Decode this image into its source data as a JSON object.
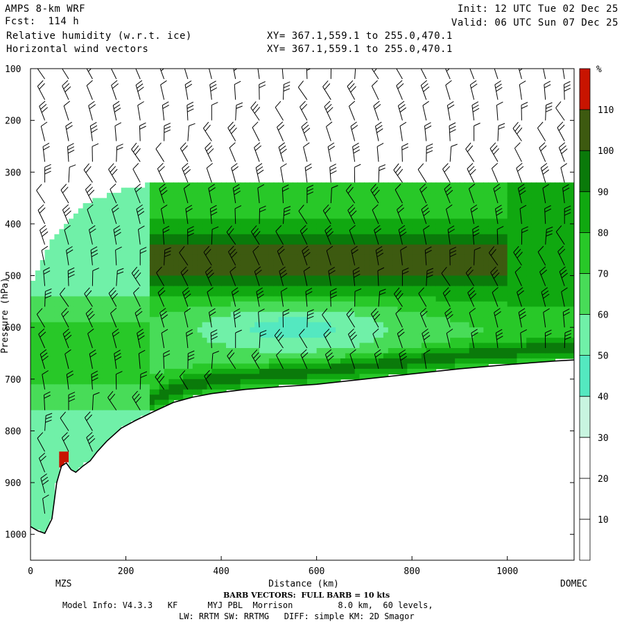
{
  "header": {
    "model": "AMPS 8-km WRF",
    "forecast": "Fcst:  114 h",
    "field1": "Relative humidity (w.r.t. ice)",
    "field2": "Horizontal wind vectors",
    "init": "Init: 12 UTC Tue 02 Dec 25",
    "valid": "Valid: 06 UTC Sun 07 Dec 25",
    "xy1": "XY= 367.1,559.1 to 255.0,470.1",
    "xy2": "XY= 367.1,559.1 to 255.0,470.1"
  },
  "footer": {
    "left_station": "MZS",
    "right_station": "DOMEC",
    "barb_note": "BARB VECTORS:  FULL BARB = 10 kts",
    "model_info": "Model Info: V4.3.3   KF      MYJ PBL  Morrison         8.0 km,  60 levels,",
    "physics": "LW: RRTM SW: RRTMG   DIFF: simple KM: 2D Smagor"
  },
  "chart_data": {
    "type": "heatmap",
    "xlabel": "Distance (km)",
    "ylabel": "Pressure (hPa)",
    "xlim": [
      0,
      1140
    ],
    "ylim": [
      1050,
      100
    ],
    "x_ticks": [
      0,
      200,
      400,
      600,
      800,
      1000
    ],
    "y_ticks": [
      100,
      200,
      300,
      400,
      500,
      600,
      700,
      800,
      900,
      1000
    ],
    "terrain": {
      "x_km": [
        0,
        15,
        30,
        45,
        55,
        65,
        75,
        85,
        95,
        110,
        125,
        140,
        160,
        190,
        220,
        260,
        300,
        340,
        380,
        450,
        520,
        600,
        700,
        800,
        900,
        1000,
        1100,
        1140
      ],
      "p_hpa": [
        985,
        993,
        998,
        970,
        900,
        868,
        862,
        875,
        880,
        868,
        858,
        840,
        820,
        795,
        780,
        762,
        745,
        735,
        728,
        720,
        715,
        710,
        700,
        690,
        680,
        672,
        665,
        663
      ]
    },
    "colorbar": {
      "unit": "%",
      "labels": [
        "10",
        "20",
        "30",
        "40",
        "50",
        "60",
        "70",
        "80",
        "90",
        "100",
        "110"
      ],
      "bounds": [
        0,
        10,
        20,
        30,
        40,
        50,
        60,
        70,
        80,
        90,
        100,
        110,
        120
      ],
      "colors": [
        "#ffffff",
        "#ffffff",
        "#ffffff",
        "#c8f5e0",
        "#54e8c0",
        "#70f0a8",
        "#48dc58",
        "#28c828",
        "#10a810",
        "#0a7a0a",
        "#3d5a10",
        "#c81400"
      ]
    },
    "rh_field": {
      "x_km": [
        0,
        40,
        80,
        120,
        160,
        200,
        240,
        280,
        320,
        360,
        400,
        440,
        480,
        520,
        560,
        600,
        640,
        680,
        720,
        760,
        800,
        840,
        880,
        920,
        960,
        1000,
        1040,
        1080,
        1120
      ],
      "p_hpa": [
        325,
        350,
        375,
        400,
        425,
        450,
        475,
        500,
        525,
        550,
        575,
        600,
        625,
        650,
        675,
        700,
        725,
        750,
        775,
        800,
        825,
        850,
        875,
        900,
        925,
        950,
        975,
        1000
      ],
      "note": "RH grid sampled from the plotted shading (percent, w.r.t. ice)"
    },
    "barbs": {
      "x_km": [
        30,
        80,
        130,
        180,
        230,
        280,
        330,
        380,
        430,
        480,
        530,
        580,
        630,
        680,
        730,
        780,
        830,
        880,
        930,
        980,
        1030,
        1080,
        1120
      ],
      "p_hpa": [
        120,
        160,
        200,
        240,
        280,
        320,
        360,
        400,
        440,
        480,
        520,
        560,
        600,
        640,
        680,
        720,
        760,
        800,
        840,
        880,
        920,
        960
      ],
      "full_barb_kts": 10
    }
  }
}
